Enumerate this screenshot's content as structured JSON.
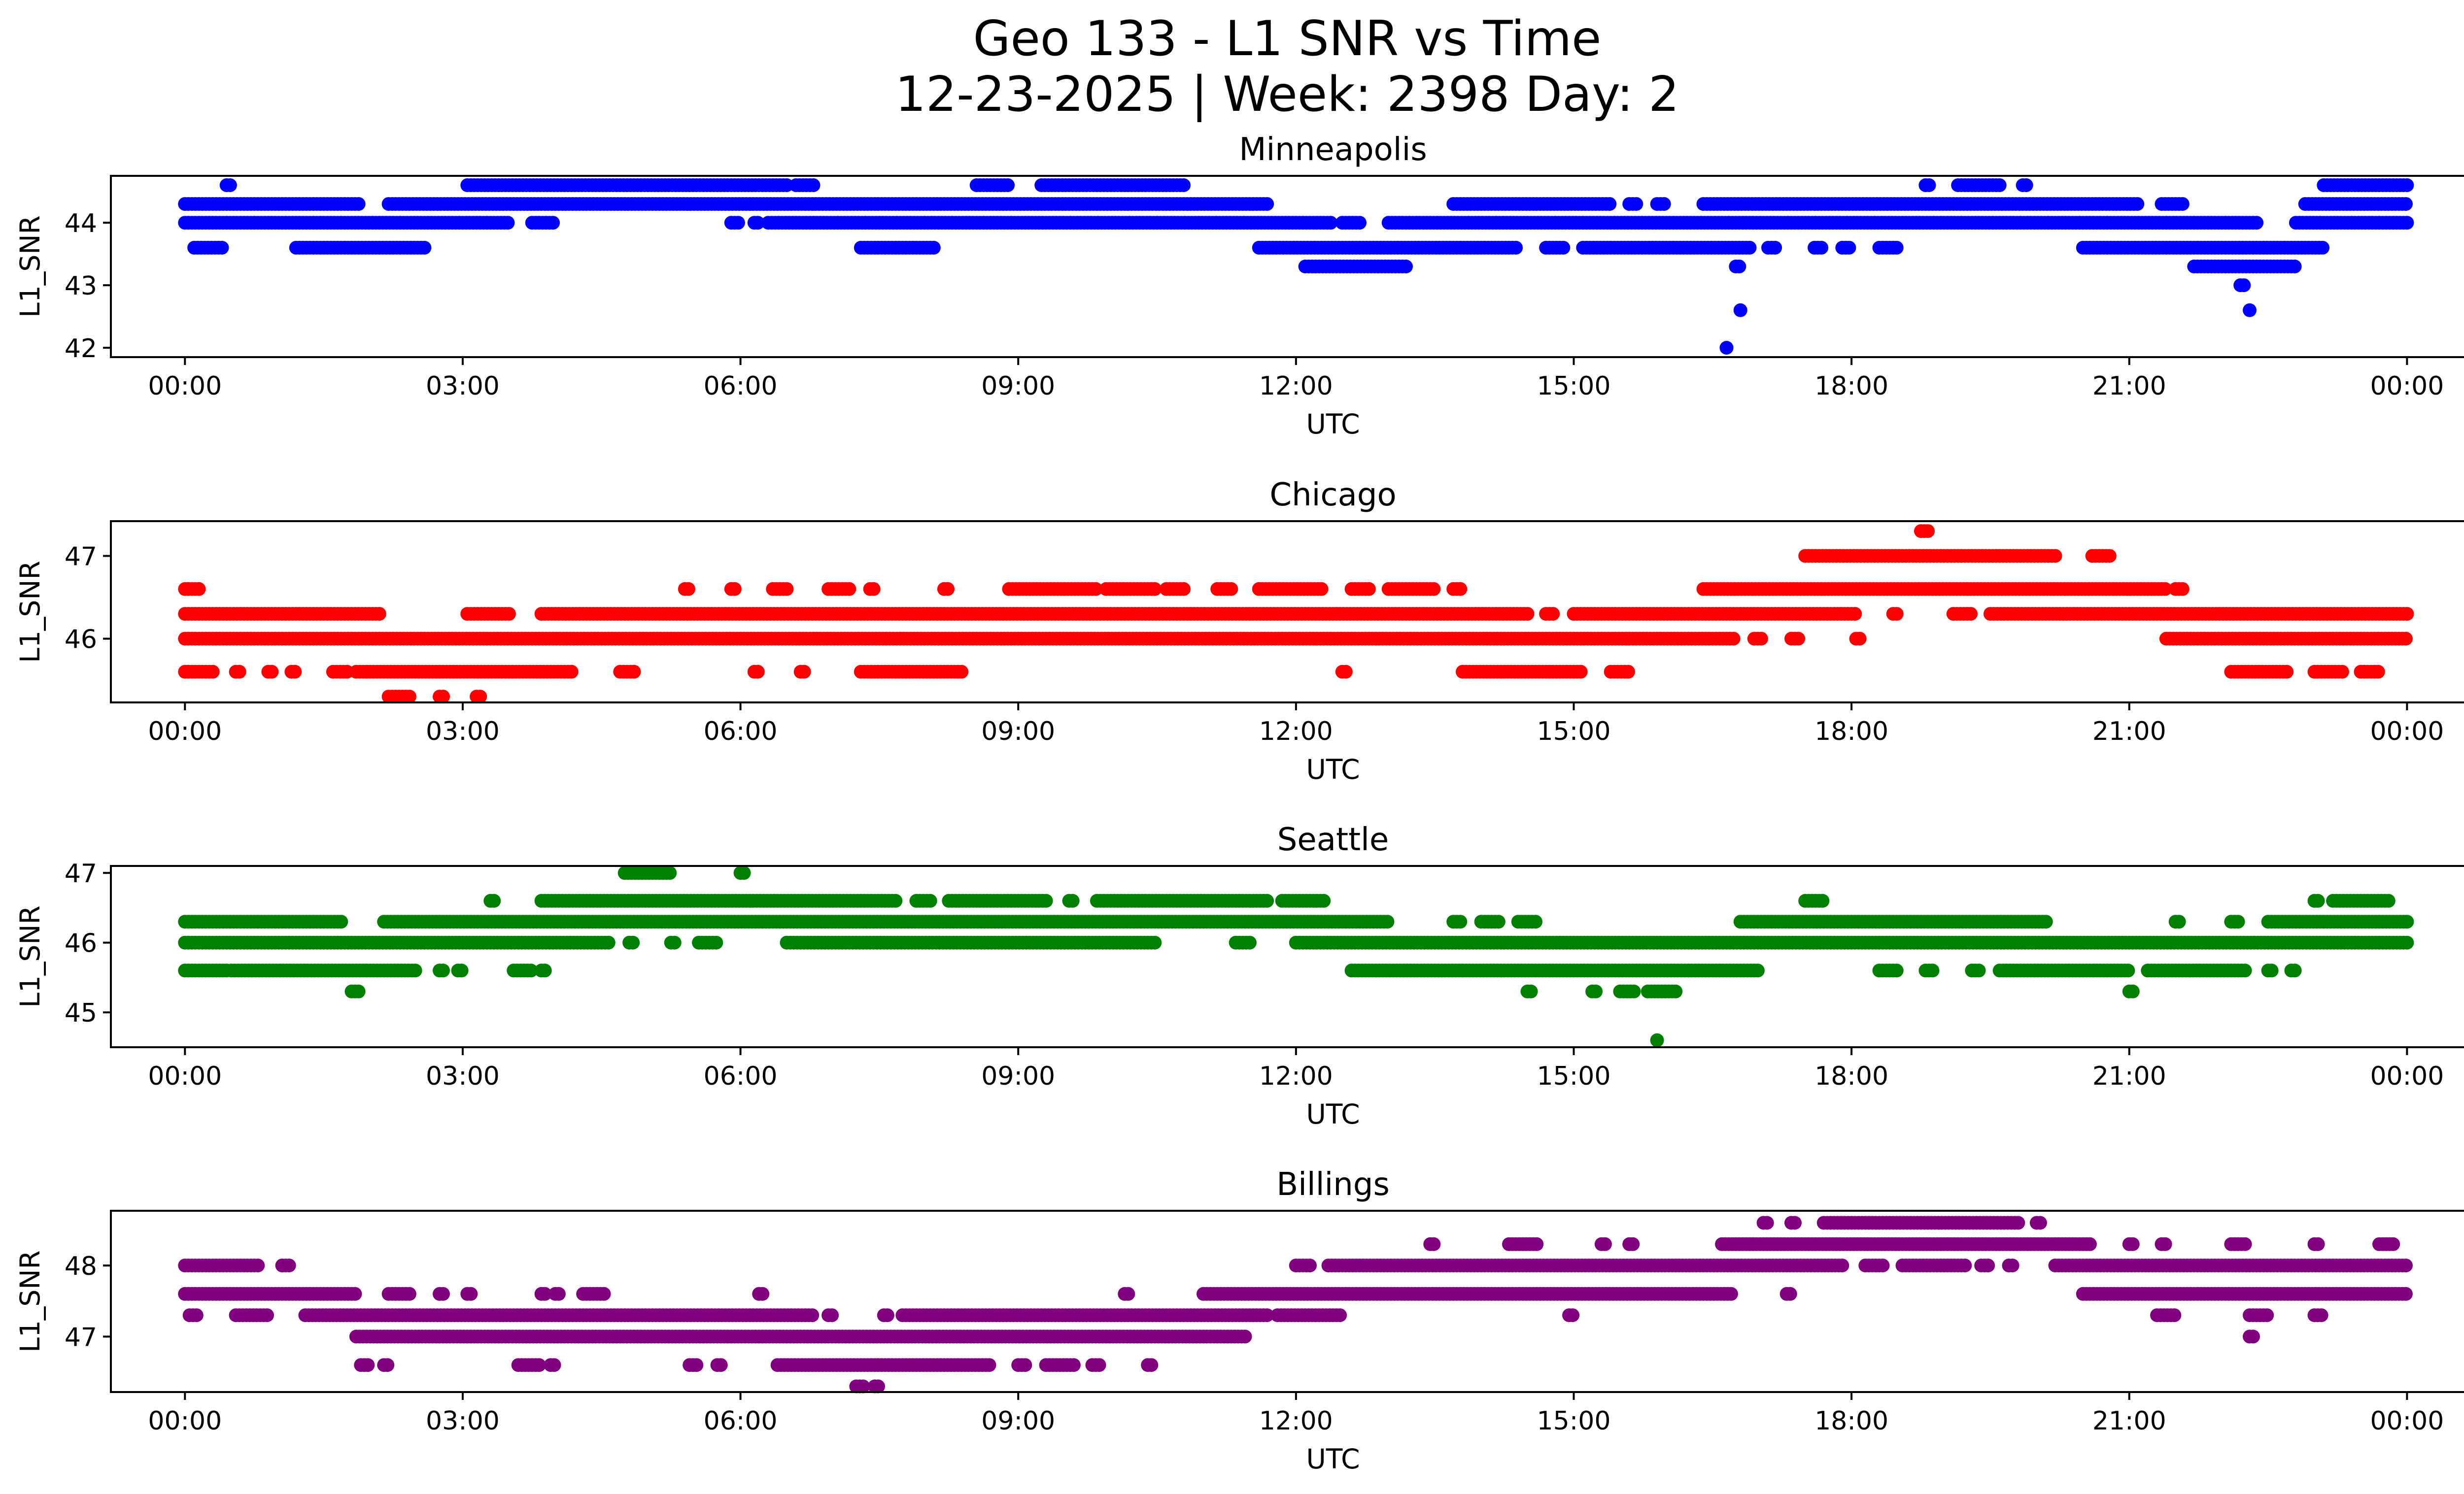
{
  "figure": {
    "title_line1": "Geo 133 - L1 SNR vs Time",
    "title_line2": "12-23-2025 | Week: 2398 Day: 2"
  },
  "chart_data": [
    {
      "type": "scatter",
      "title": "Minneapolis",
      "xlabel": "UTC",
      "ylabel": "L1_SNR",
      "color": "#0000ff",
      "xlim": [
        -0.8,
        25.6
      ],
      "ylim": [
        41.85,
        44.75
      ],
      "x_ticks": [
        "00:00",
        "03:00",
        "06:00",
        "09:00",
        "12:00",
        "15:00",
        "18:00",
        "21:00",
        "00:00"
      ],
      "y_ticks": [
        42,
        43,
        44
      ],
      "bands": [
        {
          "y": 44.6,
          "ranges": [
            [
              0.45,
              0.5
            ],
            [
              3.05,
              6.5
            ],
            [
              6.6,
              6.8
            ],
            [
              8.55,
              8.9
            ],
            [
              9.25,
              10.8
            ],
            [
              18.8,
              18.85
            ],
            [
              19.15,
              19.6
            ],
            [
              19.85,
              19.9
            ],
            [
              23.1,
              24.0
            ]
          ]
        },
        {
          "y": 44.3,
          "ranges": [
            [
              0.0,
              1.9
            ],
            [
              2.2,
              11.7
            ],
            [
              13.7,
              15.4
            ],
            [
              15.6,
              15.7
            ],
            [
              15.9,
              16.0
            ],
            [
              16.4,
              21.1
            ],
            [
              21.35,
              21.6
            ],
            [
              22.9,
              24.0
            ]
          ]
        },
        {
          "y": 44.0,
          "ranges": [
            [
              0.0,
              3.5
            ],
            [
              3.75,
              4.0
            ],
            [
              5.9,
              6.0
            ],
            [
              6.15,
              6.2
            ],
            [
              6.3,
              12.4
            ],
            [
              12.5,
              12.7
            ],
            [
              13.0,
              22.4
            ],
            [
              22.8,
              24.0
            ]
          ]
        },
        {
          "y": 43.6,
          "ranges": [
            [
              0.1,
              0.4
            ],
            [
              1.2,
              2.6
            ],
            [
              7.3,
              8.1
            ],
            [
              11.6,
              14.4
            ],
            [
              14.7,
              14.9
            ],
            [
              15.1,
              16.9
            ],
            [
              17.1,
              17.2
            ],
            [
              17.6,
              17.7
            ],
            [
              17.9,
              18.0
            ],
            [
              18.3,
              18.5
            ],
            [
              20.5,
              23.1
            ]
          ]
        },
        {
          "y": 43.3,
          "ranges": [
            [
              12.1,
              13.2
            ],
            [
              16.75,
              16.8
            ],
            [
              21.7,
              22.8
            ]
          ]
        },
        {
          "y": 43.0,
          "ranges": [
            [
              22.2,
              22.25
            ]
          ]
        }
      ],
      "points": [
        [
          16.8,
          42.6
        ],
        [
          22.3,
          42.6
        ],
        [
          16.65,
          42.0
        ]
      ]
    },
    {
      "type": "scatter",
      "title": "Chicago",
      "xlabel": "UTC",
      "ylabel": "L1_SNR",
      "color": "#ff0000",
      "xlim": [
        -0.8,
        25.6
      ],
      "ylim": [
        45.23,
        47.42
      ],
      "x_ticks": [
        "00:00",
        "03:00",
        "06:00",
        "09:00",
        "12:00",
        "15:00",
        "18:00",
        "21:00",
        "00:00"
      ],
      "y_ticks": [
        46,
        47
      ],
      "bands": [
        {
          "y": 47.3,
          "ranges": [
            [
              18.75,
              18.85
            ]
          ]
        },
        {
          "y": 47.0,
          "ranges": [
            [
              17.5,
              20.2
            ],
            [
              20.6,
              20.8
            ]
          ]
        },
        {
          "y": 46.6,
          "ranges": [
            [
              0.0,
              0.15
            ],
            [
              5.4,
              5.45
            ],
            [
              5.9,
              5.95
            ],
            [
              6.35,
              6.5
            ],
            [
              6.95,
              7.2
            ],
            [
              7.4,
              7.45
            ],
            [
              8.2,
              8.25
            ],
            [
              8.9,
              9.85
            ],
            [
              9.95,
              10.5
            ],
            [
              10.6,
              10.8
            ],
            [
              11.15,
              11.3
            ],
            [
              11.6,
              12.3
            ],
            [
              12.6,
              12.8
            ],
            [
              13.0,
              13.5
            ],
            [
              13.7,
              13.8
            ],
            [
              16.4,
              21.4
            ],
            [
              21.5,
              21.6
            ]
          ]
        },
        {
          "y": 46.3,
          "ranges": [
            [
              0.0,
              2.1
            ],
            [
              3.05,
              3.5
            ],
            [
              3.85,
              14.5
            ],
            [
              14.7,
              14.8
            ],
            [
              15.0,
              18.05
            ],
            [
              18.45,
              18.5
            ],
            [
              19.1,
              19.3
            ],
            [
              19.5,
              24.0
            ]
          ]
        },
        {
          "y": 46.0,
          "ranges": [
            [
              0.0,
              16.75
            ],
            [
              16.95,
              17.05
            ],
            [
              17.35,
              17.45
            ],
            [
              18.05,
              18.1
            ],
            [
              21.4,
              24.0
            ]
          ]
        },
        {
          "y": 45.6,
          "ranges": [
            [
              0.0,
              0.3
            ],
            [
              0.55,
              0.6
            ],
            [
              0.9,
              0.95
            ],
            [
              1.15,
              1.2
            ],
            [
              1.6,
              1.75
            ],
            [
              1.85,
              4.2
            ],
            [
              4.7,
              4.85
            ],
            [
              6.15,
              6.2
            ],
            [
              6.65,
              6.7
            ],
            [
              7.3,
              8.4
            ],
            [
              12.5,
              12.55
            ],
            [
              13.8,
              15.1
            ],
            [
              15.4,
              15.6
            ],
            [
              22.1,
              22.7
            ],
            [
              23.0,
              23.3
            ],
            [
              23.5,
              23.7
            ]
          ]
        },
        {
          "y": 45.3,
          "ranges": [
            [
              2.2,
              2.45
            ],
            [
              2.75,
              2.8
            ],
            [
              3.15,
              3.2
            ]
          ]
        }
      ],
      "points": []
    },
    {
      "type": "scatter",
      "title": "Seattle",
      "xlabel": "UTC",
      "ylabel": "L1_SNR",
      "color": "#008000",
      "xlim": [
        -0.8,
        25.6
      ],
      "ylim": [
        44.5,
        47.1
      ],
      "x_ticks": [
        "00:00",
        "03:00",
        "06:00",
        "09:00",
        "12:00",
        "15:00",
        "18:00",
        "21:00",
        "00:00"
      ],
      "y_ticks": [
        45,
        46,
        47
      ],
      "bands": [
        {
          "y": 47.0,
          "ranges": [
            [
              4.75,
              5.25
            ],
            [
              6.0,
              6.05
            ]
          ]
        },
        {
          "y": 46.6,
          "ranges": [
            [
              3.3,
              3.35
            ],
            [
              3.85,
              7.7
            ],
            [
              7.9,
              8.05
            ],
            [
              8.25,
              9.3
            ],
            [
              9.55,
              9.6
            ],
            [
              9.85,
              11.7
            ],
            [
              11.85,
              12.3
            ],
            [
              17.5,
              17.7
            ],
            [
              23.0,
              23.05
            ],
            [
              23.2,
              23.8
            ]
          ]
        },
        {
          "y": 46.3,
          "ranges": [
            [
              0.0,
              1.7
            ],
            [
              2.15,
              13.0
            ],
            [
              13.7,
              13.8
            ],
            [
              14.0,
              14.2
            ],
            [
              14.4,
              14.6
            ],
            [
              16.8,
              20.1
            ],
            [
              21.5,
              21.55
            ],
            [
              22.1,
              22.2
            ],
            [
              22.5,
              24.0
            ]
          ]
        },
        {
          "y": 46.0,
          "ranges": [
            [
              0.0,
              4.6
            ],
            [
              4.8,
              4.85
            ],
            [
              5.25,
              5.3
            ],
            [
              5.55,
              5.75
            ],
            [
              6.5,
              10.5
            ],
            [
              11.35,
              11.5
            ],
            [
              12.0,
              24.0
            ]
          ]
        },
        {
          "y": 45.6,
          "ranges": [
            [
              0.0,
              0.45
            ],
            [
              0.5,
              2.5
            ],
            [
              2.75,
              2.8
            ],
            [
              2.95,
              3.0
            ],
            [
              3.55,
              3.75
            ],
            [
              3.85,
              3.9
            ],
            [
              12.6,
              17.0
            ],
            [
              18.3,
              18.5
            ],
            [
              18.8,
              18.9
            ],
            [
              19.3,
              19.4
            ],
            [
              19.6,
              21.0
            ],
            [
              21.2,
              22.25
            ],
            [
              22.5,
              22.55
            ],
            [
              22.75,
              22.8
            ]
          ]
        },
        {
          "y": 45.3,
          "ranges": [
            [
              1.8,
              1.9
            ],
            [
              14.5,
              14.55
            ],
            [
              15.2,
              15.25
            ],
            [
              15.5,
              15.65
            ],
            [
              15.8,
              16.1
            ],
            [
              21.0,
              21.05
            ]
          ]
        }
      ],
      "points": [
        [
          15.9,
          44.6
        ]
      ]
    },
    {
      "type": "scatter",
      "title": "Billings",
      "xlabel": "UTC",
      "ylabel": "L1_SNR",
      "color": "#800080",
      "xlim": [
        -0.8,
        25.6
      ],
      "ylim": [
        46.22,
        48.77
      ],
      "x_ticks": [
        "00:00",
        "03:00",
        "06:00",
        "09:00",
        "12:00",
        "15:00",
        "18:00",
        "21:00",
        "00:00"
      ],
      "y_ticks": [
        47,
        48
      ],
      "bands": [
        {
          "y": 48.6,
          "ranges": [
            [
              17.05,
              17.1
            ],
            [
              17.35,
              17.4
            ],
            [
              17.7,
              19.8
            ],
            [
              20.0,
              20.05
            ]
          ]
        },
        {
          "y": 48.3,
          "ranges": [
            [
              13.45,
              13.5
            ],
            [
              14.3,
              14.6
            ],
            [
              15.3,
              15.35
            ],
            [
              15.6,
              15.65
            ],
            [
              16.6,
              20.6
            ],
            [
              21.0,
              21.05
            ],
            [
              21.35,
              21.4
            ],
            [
              22.1,
              22.25
            ],
            [
              23.0,
              23.05
            ],
            [
              23.7,
              23.85
            ]
          ]
        },
        {
          "y": 48.0,
          "ranges": [
            [
              0.0,
              0.8
            ],
            [
              1.05,
              1.15
            ],
            [
              12.0,
              12.15
            ],
            [
              12.35,
              17.9
            ],
            [
              18.15,
              18.35
            ],
            [
              18.55,
              19.25
            ],
            [
              19.4,
              19.5
            ],
            [
              19.7,
              19.75
            ],
            [
              20.2,
              24.0
            ]
          ]
        },
        {
          "y": 47.6,
          "ranges": [
            [
              0.0,
              1.85
            ],
            [
              2.2,
              2.45
            ],
            [
              2.75,
              2.8
            ],
            [
              3.05,
              3.1
            ],
            [
              3.85,
              3.9
            ],
            [
              4.0,
              4.05
            ],
            [
              4.3,
              4.55
            ],
            [
              6.2,
              6.25
            ],
            [
              10.15,
              10.2
            ],
            [
              11.0,
              16.7
            ],
            [
              17.3,
              17.35
            ],
            [
              20.5,
              24.0
            ]
          ]
        },
        {
          "y": 47.3,
          "ranges": [
            [
              0.05,
              0.15
            ],
            [
              0.55,
              0.9
            ],
            [
              1.3,
              6.8
            ],
            [
              6.95,
              7.0
            ],
            [
              7.55,
              7.6
            ],
            [
              7.75,
              11.7
            ],
            [
              11.8,
              12.5
            ],
            [
              14.95,
              15.0
            ],
            [
              21.3,
              21.5
            ],
            [
              22.3,
              22.5
            ],
            [
              23.0,
              23.1
            ]
          ]
        },
        {
          "y": 47.0,
          "ranges": [
            [
              1.85,
              11.45
            ],
            [
              22.3,
              22.35
            ]
          ]
        },
        {
          "y": 46.6,
          "ranges": [
            [
              1.9,
              2.0
            ],
            [
              2.15,
              2.2
            ],
            [
              3.6,
              3.85
            ],
            [
              3.95,
              4.0
            ],
            [
              5.45,
              5.55
            ],
            [
              5.75,
              5.8
            ],
            [
              6.4,
              8.7
            ],
            [
              9.0,
              9.1
            ],
            [
              9.3,
              9.6
            ],
            [
              9.8,
              9.9
            ],
            [
              10.4,
              10.45
            ]
          ]
        },
        {
          "y": 46.3,
          "ranges": [
            [
              7.25,
              7.35
            ],
            [
              7.45,
              7.5
            ]
          ]
        }
      ],
      "points": []
    }
  ]
}
